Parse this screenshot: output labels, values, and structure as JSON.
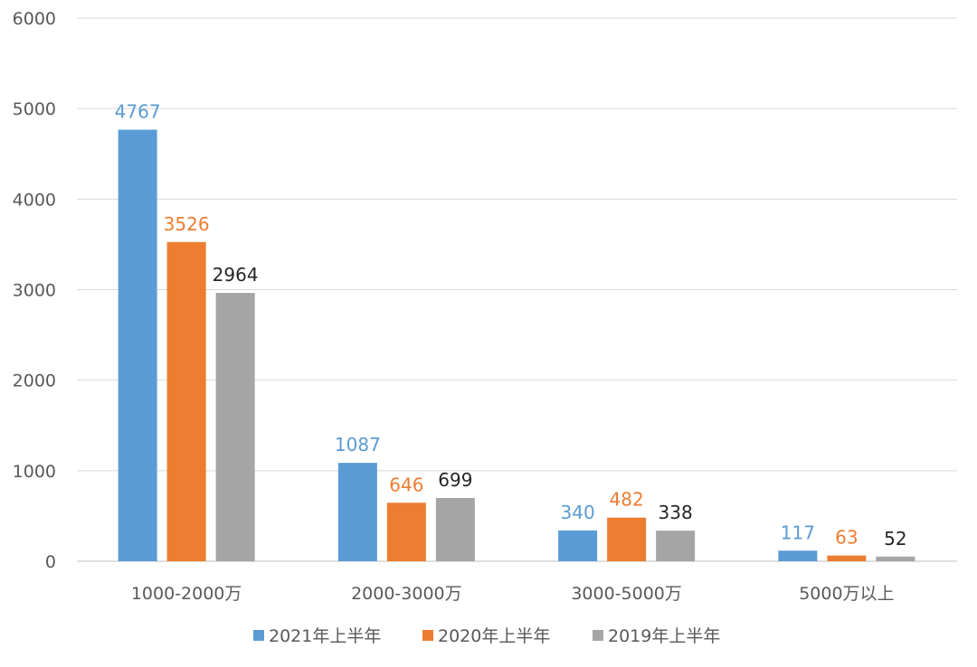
{
  "chart_data": {
    "type": "bar",
    "categories": [
      "1000-2000万",
      "2000-3000万",
      "3000-5000万",
      "5000万以上"
    ],
    "series": [
      {
        "name": "2021年上半年",
        "values": [
          4767,
          1087,
          340,
          117
        ],
        "color": "#5B9BD5",
        "label_color": "#5B9BD5"
      },
      {
        "name": "2020年上半年",
        "values": [
          3526,
          646,
          482,
          63
        ],
        "color": "#ED7D31",
        "label_color": "#ED7D31"
      },
      {
        "name": "2019年上半年",
        "values": [
          2964,
          699,
          338,
          52
        ],
        "color": "#A5A5A5",
        "label_color": "#262626"
      }
    ],
    "ylim": [
      0,
      6000
    ],
    "yticks": [
      0,
      1000,
      2000,
      3000,
      4000,
      5000,
      6000
    ],
    "grid": true,
    "legend": "bottom",
    "title": "",
    "xlabel": "",
    "ylabel": ""
  }
}
